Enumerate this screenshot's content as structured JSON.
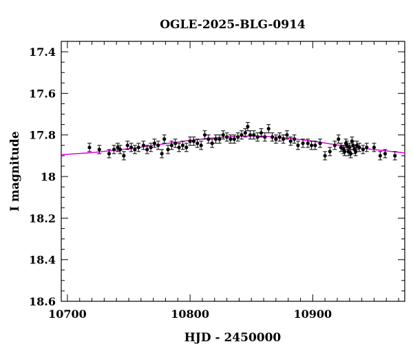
{
  "chart_data": {
    "type": "scatter",
    "title": "OGLE-2025-BLG-0914",
    "xlabel": "HJD - 2450000",
    "ylabel": "I magnitude",
    "xlim": [
      10695,
      10975
    ],
    "ylim": [
      18.6,
      17.35
    ],
    "y_inverted": true,
    "grid": false,
    "legend": "none",
    "x_ticks": [
      10700,
      10800,
      10900
    ],
    "x_tick_labels": [
      "10700",
      "10800",
      "10900"
    ],
    "y_ticks": [
      17.4,
      17.6,
      17.8,
      18,
      18.2,
      18.4,
      18.6
    ],
    "y_tick_labels": [
      "17.4",
      "17.6",
      "17.8",
      "18",
      "18.2",
      "18.4",
      "18.6"
    ],
    "colors": {
      "points": "#000000",
      "model": "#e000e0"
    },
    "series": [
      {
        "kind": "points",
        "x": [
          10718,
          10726,
          10734,
          10738,
          10741,
          10743,
          10746,
          10749,
          10752,
          10755,
          10758,
          10762,
          10765,
          10768,
          10771,
          10774,
          10777,
          10779,
          10782,
          10785,
          10788,
          10791,
          10794,
          10797,
          10800,
          10803,
          10806,
          10809,
          10812,
          10815,
          10818,
          10821,
          10824,
          10827,
          10830,
          10833,
          10836,
          10839,
          10842,
          10845,
          10847,
          10849,
          10852,
          10855,
          10858,
          10861,
          10864,
          10867,
          10870,
          10873,
          10876,
          10879,
          10882,
          10885,
          10888,
          10892,
          10896,
          10899,
          10902,
          10906,
          10910,
          10914,
          10918,
          10921,
          10923,
          10925,
          10926,
          10927,
          10928,
          10929,
          10930,
          10931,
          10932,
          10933,
          10934,
          10935,
          10936,
          10938,
          10941,
          10944,
          10950,
          10955,
          10959,
          10967
        ],
        "y": [
          17.86,
          17.87,
          17.89,
          17.87,
          17.86,
          17.87,
          17.9,
          17.85,
          17.86,
          17.87,
          17.86,
          17.85,
          17.87,
          17.86,
          17.84,
          17.85,
          17.89,
          17.82,
          17.87,
          17.85,
          17.84,
          17.86,
          17.85,
          17.86,
          17.83,
          17.83,
          17.84,
          17.85,
          17.8,
          17.82,
          17.84,
          17.82,
          17.82,
          17.8,
          17.81,
          17.82,
          17.82,
          17.81,
          17.8,
          17.79,
          17.76,
          17.8,
          17.8,
          17.81,
          17.79,
          17.81,
          17.77,
          17.81,
          17.82,
          17.81,
          17.82,
          17.8,
          17.83,
          17.82,
          17.85,
          17.84,
          17.84,
          17.85,
          17.85,
          17.84,
          17.9,
          17.88,
          17.85,
          17.82,
          17.86,
          17.87,
          17.88,
          17.84,
          17.85,
          17.88,
          17.86,
          17.89,
          17.83,
          17.85,
          17.87,
          17.88,
          17.85,
          17.86,
          17.87,
          17.86,
          17.86,
          17.9,
          17.89,
          17.9
        ],
        "yerr": 0.02
      },
      {
        "kind": "model",
        "x": [
          10695,
          10720,
          10740,
          10760,
          10780,
          10800,
          10820,
          10840,
          10850,
          10860,
          10880,
          10900,
          10920,
          10940,
          10960,
          10975
        ],
        "y": [
          17.895,
          17.885,
          17.873,
          17.859,
          17.842,
          17.826,
          17.814,
          17.806,
          17.805,
          17.806,
          17.815,
          17.83,
          17.848,
          17.864,
          17.877,
          17.886
        ]
      }
    ]
  }
}
